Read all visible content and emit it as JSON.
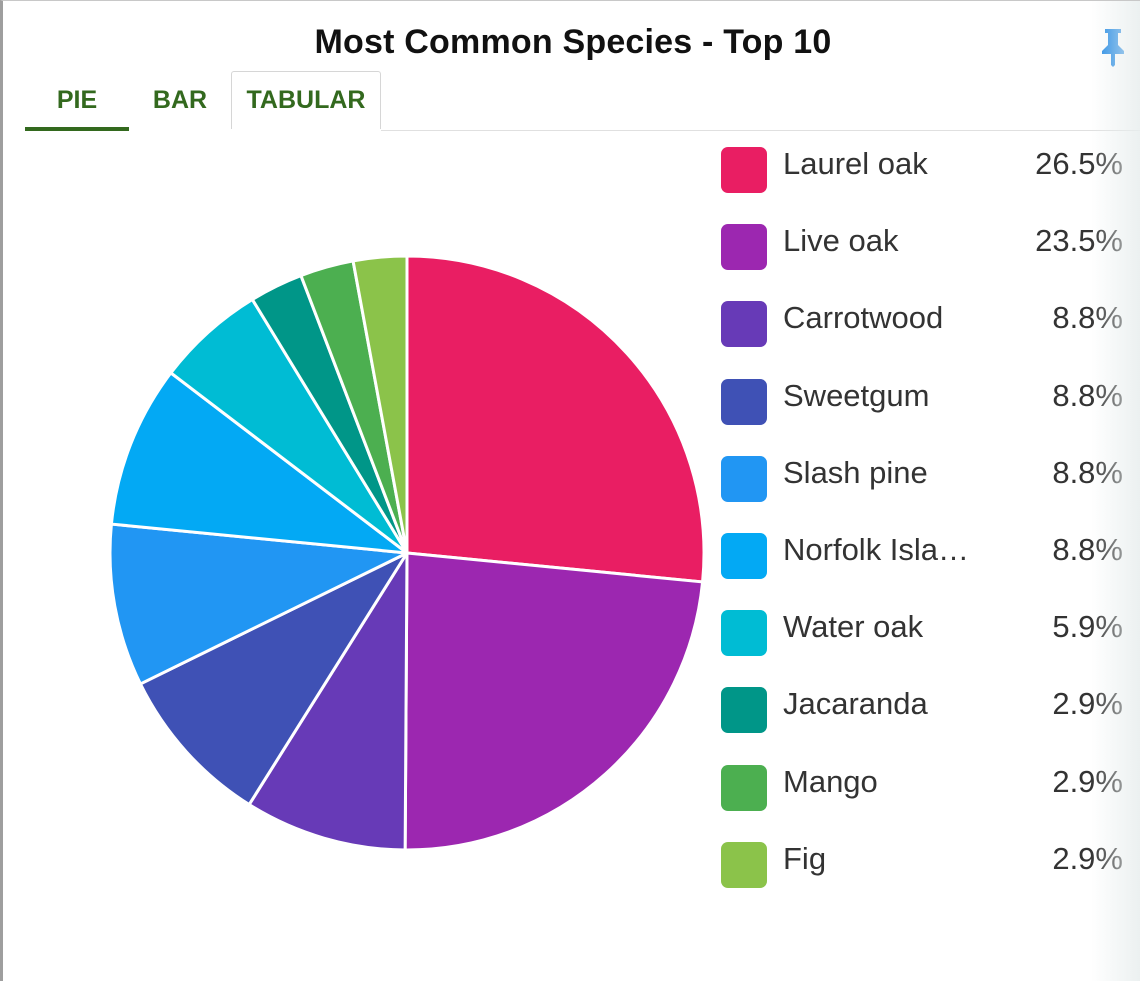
{
  "widget": {
    "title": "Most Common Species - Top 10",
    "pin_icon": "pin-icon"
  },
  "tabs": [
    {
      "label": "PIE",
      "active": true
    },
    {
      "label": "BAR",
      "active": false
    },
    {
      "label": "TABULAR",
      "active": false
    }
  ],
  "chart_data": {
    "type": "pie",
    "title": "Most Common Species - Top 10",
    "legend_position": "right",
    "slices": [
      {
        "label": "Laurel oak",
        "value": 26.5,
        "display": "26.5%",
        "color": "#e91e63"
      },
      {
        "label": "Live oak",
        "value": 23.5,
        "display": "23.5%",
        "color": "#9c27b0"
      },
      {
        "label": "Carrotwood",
        "value": 8.8,
        "display": "8.8%",
        "color": "#673ab7"
      },
      {
        "label": "Sweetgum",
        "value": 8.8,
        "display": "8.8%",
        "color": "#3f51b5"
      },
      {
        "label": "Slash pine",
        "value": 8.8,
        "display": "8.8%",
        "color": "#2196f3"
      },
      {
        "label": "Norfolk Isla…",
        "value": 8.8,
        "display": "8.8%",
        "color": "#03a9f4"
      },
      {
        "label": "Water oak",
        "value": 5.9,
        "display": "5.9%",
        "color": "#00bcd4"
      },
      {
        "label": "Jacaranda",
        "value": 2.9,
        "display": "2.9%",
        "color": "#009688"
      },
      {
        "label": "Mango",
        "value": 2.9,
        "display": "2.9%",
        "color": "#4caf50"
      },
      {
        "label": "Fig",
        "value": 2.9,
        "display": "2.9%",
        "color": "#8bc34a"
      }
    ]
  }
}
